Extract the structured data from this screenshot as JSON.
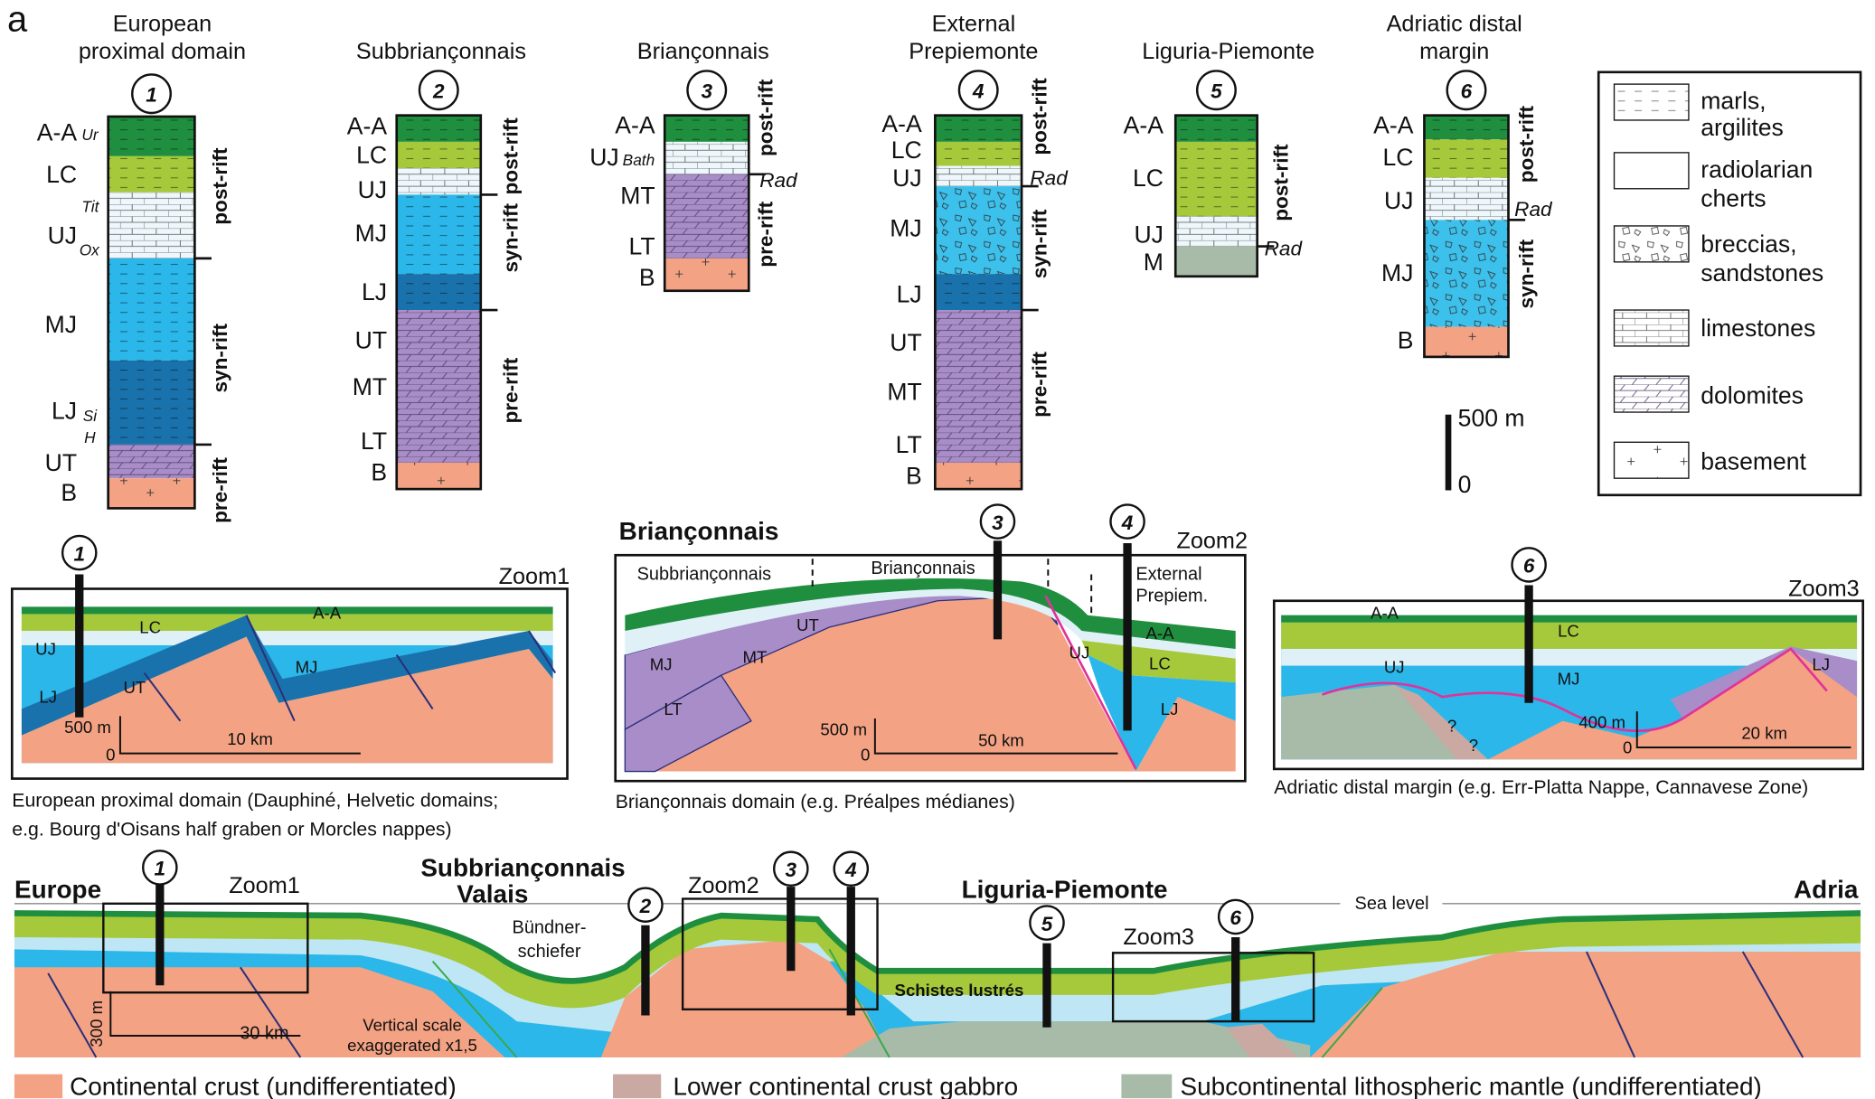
{
  "panel_label": "a",
  "columns": [
    {
      "number": "1",
      "title": [
        "European",
        "proximal domain"
      ],
      "units": [
        "A-A",
        "LC",
        "UJ",
        "MJ",
        "LJ",
        "UT",
        "B"
      ],
      "subunits": [
        "Ur",
        "Tit",
        "Ox",
        "Si",
        "H"
      ],
      "phases": [
        "post-rift",
        "syn-rift",
        "pre-rift"
      ]
    },
    {
      "number": "2",
      "title": [
        "Subbriançonnais"
      ],
      "units": [
        "A-A",
        "LC",
        "UJ",
        "MJ",
        "LJ",
        "UT",
        "MT",
        "LT",
        "B"
      ],
      "phases": [
        "post-rift",
        "syn-rift",
        "pre-rift"
      ]
    },
    {
      "number": "3",
      "title": [
        "Briançonnais"
      ],
      "units": [
        "A-A",
        "UJ",
        "MT",
        "LT",
        "B"
      ],
      "subunits": [
        "Bath"
      ],
      "markers": [
        "Rad"
      ],
      "phases": [
        "post-rift",
        "pre-rift"
      ]
    },
    {
      "number": "4",
      "title": [
        "External",
        "Prepiemonte"
      ],
      "units": [
        "A-A",
        "LC",
        "UJ",
        "MJ",
        "LJ",
        "UT",
        "MT",
        "LT",
        "B"
      ],
      "markers": [
        "Rad"
      ],
      "phases": [
        "post-rift",
        "syn-rift",
        "pre-rift"
      ]
    },
    {
      "number": "5",
      "title": [
        "Liguria-Piemonte"
      ],
      "units": [
        "A-A",
        "LC",
        "UJ",
        "M"
      ],
      "markers": [
        "Rad"
      ],
      "phases": [
        "post-rift"
      ]
    },
    {
      "number": "6",
      "title": [
        "Adriatic distal",
        "margin"
      ],
      "units": [
        "A-A",
        "LC",
        "UJ",
        "MJ",
        "B"
      ],
      "markers": [
        "Rad"
      ],
      "phases": [
        "post-rift",
        "syn-rift"
      ]
    }
  ],
  "legend": {
    "items": [
      [
        "marls,",
        "argilites"
      ],
      [
        "radiolarian",
        "cherts"
      ],
      [
        "breccias,",
        "sandstones"
      ],
      [
        "limestones"
      ],
      [
        "dolomites"
      ],
      [
        "basement"
      ]
    ],
    "scale": [
      "500 m",
      "0"
    ]
  },
  "zooms": [
    {
      "title": "Zoom1",
      "labels": [
        "A-A",
        "LC",
        "UJ",
        "MJ",
        "LJ",
        "UT"
      ],
      "scale": [
        "500 m",
        "0",
        "10 km"
      ],
      "markers": [
        "1"
      ],
      "caption": [
        "European proximal domain (Dauphiné, Helvetic domains;",
        "e.g. Bourg d'Oisans half graben or Morcles nappes)"
      ]
    },
    {
      "heading": "Briançonnais",
      "title": "Zoom2",
      "domains": [
        "Subbriançonnais",
        "Briançonnais",
        "External",
        "Prepiem."
      ],
      "labels": [
        "A-A",
        "LC",
        "UJ",
        "LJ",
        "UT",
        "MT",
        "MJ",
        "LT"
      ],
      "scale": [
        "500 m",
        "0",
        "50 km"
      ],
      "markers": [
        "3",
        "4"
      ],
      "caption": [
        "Briançonnais domain (e.g. Préalpes médianes)"
      ]
    },
    {
      "title": "Zoom3",
      "labels": [
        "A-A",
        "LC",
        "UJ",
        "MJ",
        "LJ",
        "?",
        "?"
      ],
      "scale": [
        "400 m",
        "0",
        "20 km"
      ],
      "markers": [
        "6"
      ],
      "caption": [
        "Adriatic distal margin (e.g. Err-Platta Nappe, Cannavese Zone)"
      ]
    }
  ],
  "section": {
    "labels": [
      "Europe",
      "Subbriançonnais",
      "Valais",
      "Liguria-Piemonte",
      "Adria"
    ],
    "notes": [
      "Bündner-",
      "schiefer",
      "Schistes lustrés",
      "Sea level",
      "Vertical scale",
      "exaggerated x1,5"
    ],
    "zooms": [
      "Zoom1",
      "Zoom2",
      "Zoom3"
    ],
    "markers": [
      "1",
      "2",
      "3",
      "4",
      "5",
      "6"
    ],
    "scale": [
      "300 m",
      "30 km"
    ]
  },
  "bottom_legend": [
    "Continental crust (undifferentiated)",
    "Lower continental crust gabbro",
    "Subcontinental lithospheric mantle (undifferentiated)"
  ]
}
